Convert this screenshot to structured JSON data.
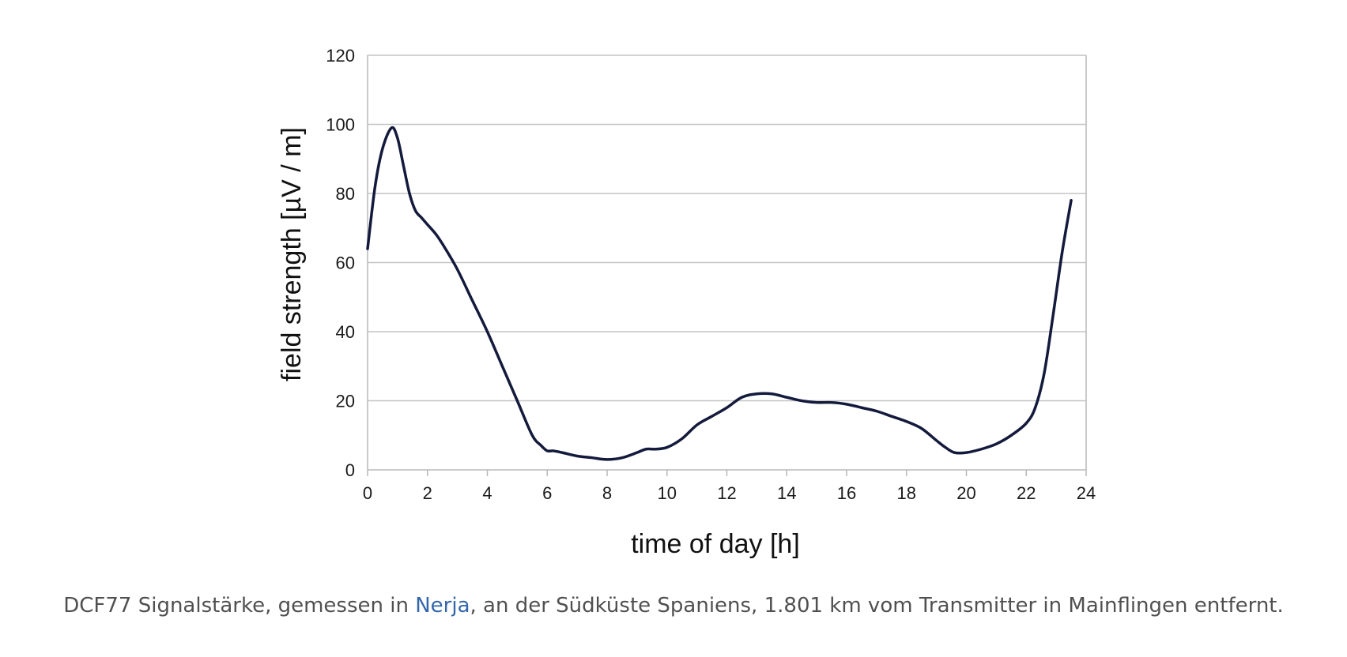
{
  "chart_data": {
    "type": "line",
    "title": "",
    "xlabel": "time of day  [h]",
    "ylabel": "field strength  [µV / m]",
    "xlim": [
      0,
      24
    ],
    "ylim": [
      0,
      120
    ],
    "x_ticks": [
      0,
      2,
      4,
      6,
      8,
      10,
      12,
      14,
      16,
      18,
      20,
      22,
      24
    ],
    "y_ticks": [
      0,
      20,
      40,
      60,
      80,
      100,
      120
    ],
    "grid": "horizontal",
    "legend": "none",
    "line_color": "#141a3c",
    "series": [
      {
        "x": [
          0,
          0.25,
          0.5,
          0.8,
          1.0,
          1.2,
          1.4,
          1.6,
          1.8,
          2.0,
          2.3,
          2.6,
          3.0,
          3.5,
          4.0,
          4.5,
          5.0,
          5.5,
          5.8,
          6.0,
          6.2,
          6.5,
          7.0,
          7.5,
          8.0,
          8.5,
          9.0,
          9.3,
          9.6,
          10.0,
          10.5,
          11.0,
          11.5,
          12.0,
          12.5,
          13.0,
          13.5,
          14.0,
          14.5,
          15.0,
          15.5,
          16.0,
          16.5,
          17.0,
          17.5,
          18.0,
          18.5,
          19.0,
          19.3,
          19.6,
          20.0,
          20.5,
          21.0,
          21.5,
          22.0,
          22.3,
          22.6,
          22.9,
          23.2,
          23.5
        ],
        "y": [
          64,
          82,
          93,
          99,
          96,
          88,
          80,
          75,
          73,
          71,
          68,
          64,
          58,
          49,
          40,
          30,
          20,
          10,
          7,
          5.5,
          5.5,
          5,
          4,
          3.5,
          3,
          3.5,
          5,
          6,
          6,
          6.5,
          9,
          13,
          15.5,
          18,
          21,
          22,
          22,
          21,
          20,
          19.5,
          19.5,
          19,
          18,
          17,
          15.5,
          14,
          12,
          8.5,
          6.5,
          5,
          5,
          6,
          7.5,
          10,
          13.5,
          18,
          28,
          45,
          63,
          78
        ]
      }
    ]
  },
  "caption": {
    "before_link": "DCF77 Signalstärke, gemessen in ",
    "link_text": "Nerja",
    "after_link": ", an der Südküste Spaniens, 1.801 km vom Transmitter in Mainflingen entfernt."
  }
}
